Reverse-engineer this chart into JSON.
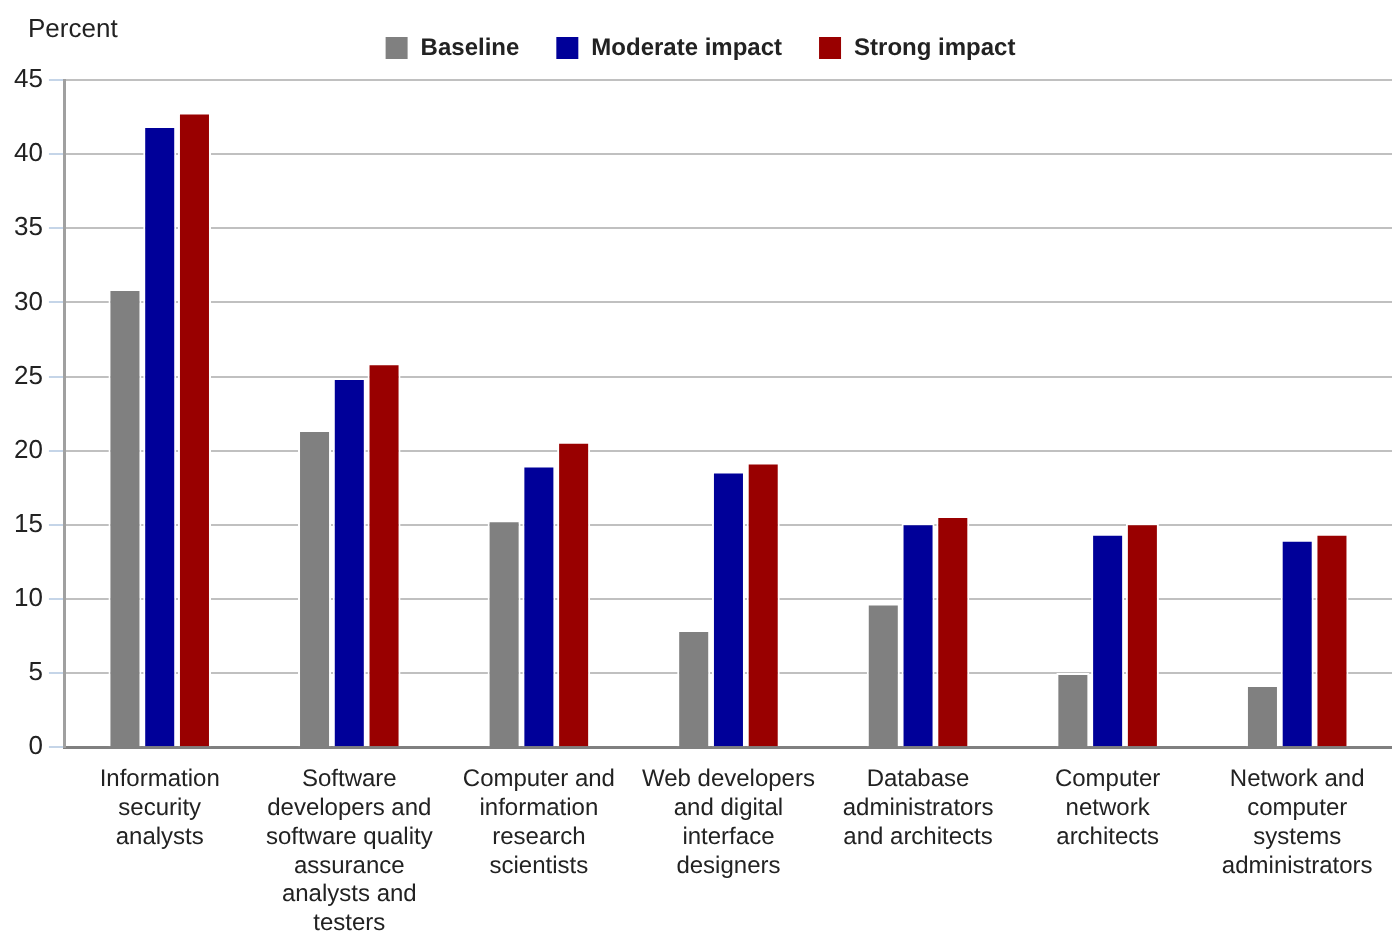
{
  "chart_data": {
    "type": "bar",
    "ylabel": "Percent",
    "categories": [
      "Information security analysts",
      "Software developers and software quality assurance analysts and testers",
      "Computer and information research scientists",
      "Web developers and digital interface designers",
      "Database administrators and architects",
      "Computer network architects",
      "Network and computer systems administrators"
    ],
    "series": [
      {
        "name": "Baseline",
        "color": "#808080",
        "values": [
          30.9,
          21.4,
          15.3,
          7.9,
          9.7,
          5.0,
          4.2
        ]
      },
      {
        "name": "Moderate impact",
        "color": "#000099",
        "values": [
          41.9,
          24.9,
          19.0,
          18.6,
          15.1,
          14.4,
          14.0
        ]
      },
      {
        "name": "Strong impact",
        "color": "#990000",
        "values": [
          42.8,
          25.9,
          20.6,
          19.2,
          15.6,
          15.1,
          14.4
        ]
      }
    ],
    "ylim": [
      0,
      45
    ],
    "yticks": [
      0,
      5,
      10,
      15,
      20,
      25,
      30,
      35,
      40,
      45
    ],
    "grid": "y",
    "legend": "top"
  }
}
